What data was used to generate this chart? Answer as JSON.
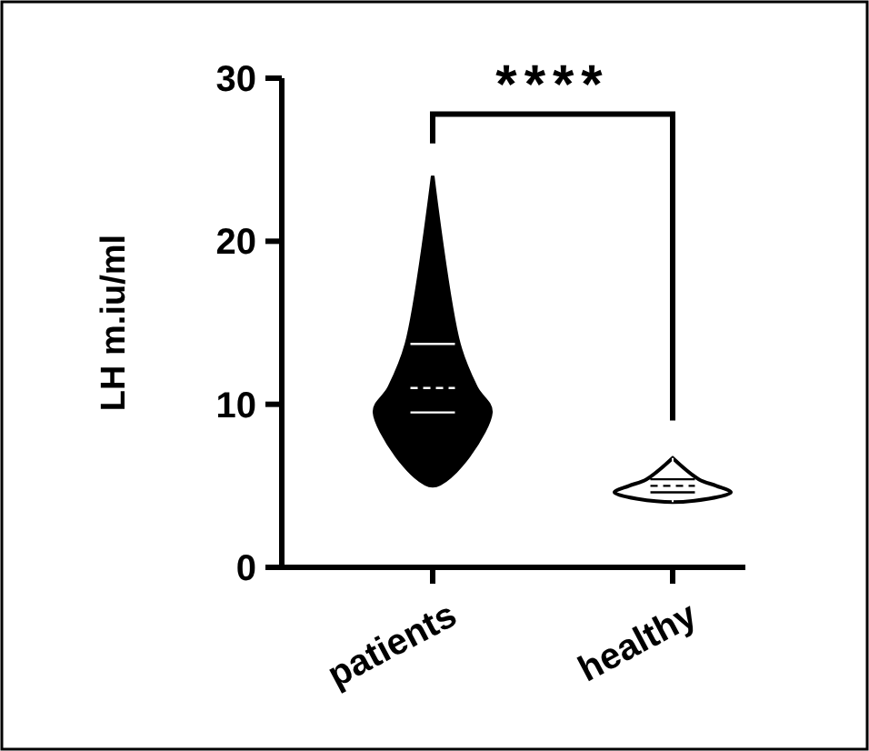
{
  "chart_data": {
    "type": "box",
    "ylabel": "LH m.iu/ml",
    "categories": [
      "patients",
      "healthy"
    ],
    "boxes": [
      {
        "low": 5,
        "q1": 9.5,
        "median": 11,
        "q3": 13.7,
        "high": 24
      },
      {
        "low": 4,
        "q1": 4.6,
        "median": 5,
        "q3": 5.4,
        "high": 6.7
      }
    ],
    "colors": [
      "#000000",
      "#ffffff"
    ],
    "ylim": [
      0,
      30
    ],
    "yticks": [
      0,
      10,
      20,
      30
    ],
    "annotations": [
      "****"
    ],
    "grid": false
  }
}
